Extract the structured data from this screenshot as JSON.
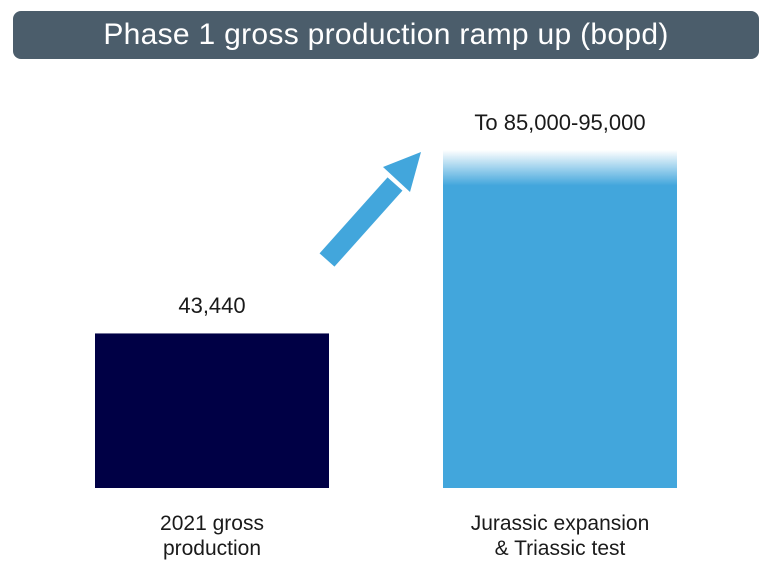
{
  "chart_data": {
    "type": "bar",
    "title": "Phase 1 gross production ramp up (bopd)",
    "xlabel": "",
    "ylabel": "",
    "categories": [
      "2021 gross\nproduction",
      "Jurassic expansion\n& Triassic test"
    ],
    "values": [
      43440,
      90000
    ],
    "value_ranges": [
      null,
      [
        85000,
        95000
      ]
    ],
    "data_labels": [
      "43,440",
      "To 85,000-95,000"
    ],
    "ylim": [
      0,
      95000
    ],
    "grid": false,
    "legend": "none",
    "colors": [
      "#000045",
      "#42a6dc"
    ],
    "arrow_color": "#42a6dc",
    "title_bg": "#4b5d6b"
  }
}
